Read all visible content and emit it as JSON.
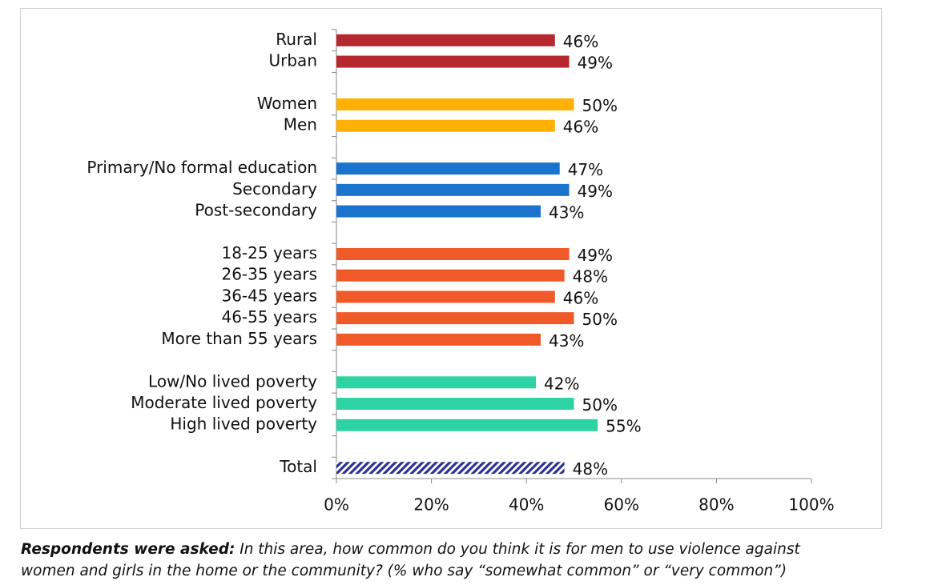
{
  "chart_data": {
    "type": "hbar",
    "categories": [
      "Rural",
      "Urban",
      null,
      "Women",
      "Men",
      null,
      "Primary/No formal education",
      "Secondary",
      "Post-secondary",
      null,
      "18-25 years",
      "26-35 years",
      "36-45 years",
      "46-55 years",
      "More than 55 years",
      null,
      "Low/No lived poverty",
      "Moderate lived poverty",
      "High lived poverty",
      null,
      "Total"
    ],
    "values": [
      46,
      49,
      null,
      50,
      46,
      null,
      47,
      49,
      43,
      null,
      49,
      48,
      46,
      50,
      43,
      null,
      42,
      50,
      55,
      null,
      48
    ],
    "value_labels": [
      "46%",
      "49%",
      null,
      "50%",
      "46%",
      null,
      "47%",
      "49%",
      "43%",
      null,
      "49%",
      "48%",
      "46%",
      "50%",
      "43%",
      null,
      "42%",
      "50%",
      "55%",
      null,
      "48%"
    ],
    "colors": [
      "#b5282e",
      "#b5282e",
      null,
      "#ffb000",
      "#ffb000",
      null,
      "#1a73cc",
      "#1a73cc",
      "#1a73cc",
      null,
      "#f05a28",
      "#f05a28",
      "#f05a28",
      "#f05a28",
      "#f05a28",
      null,
      "#2dd3a2",
      "#2dd3a2",
      "#2dd3a2",
      null,
      "#2e3192"
    ],
    "patterns": [
      "solid",
      "solid",
      null,
      "solid",
      "solid",
      null,
      "solid",
      "solid",
      "solid",
      null,
      "solid",
      "solid",
      "solid",
      "solid",
      "solid",
      null,
      "solid",
      "solid",
      "solid",
      null,
      "hatched"
    ],
    "xlim": [
      0,
      100
    ],
    "xticks": [
      {
        "value": 0,
        "label": "0%"
      },
      {
        "value": 20,
        "label": "20%"
      },
      {
        "value": 40,
        "label": "40%"
      },
      {
        "value": 60,
        "label": "60%"
      },
      {
        "value": 80,
        "label": "80%"
      },
      {
        "value": 100,
        "label": "100%"
      }
    ],
    "caption": {
      "lead": "Respondents were asked:",
      "text": "In this area, how common do you think it is for men to use violence against",
      "text2": "women and girls in the home or the community? (% who say “somewhat common” or “very common”)"
    }
  }
}
